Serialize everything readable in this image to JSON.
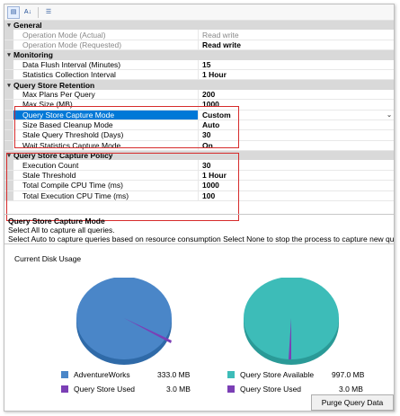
{
  "toolbar": {
    "buttons": [
      {
        "name": "categorized-sort-icon",
        "glyph": "▤"
      },
      {
        "name": "alphabetical-sort-icon",
        "glyph": "A↓"
      },
      {
        "name": "property-pages-icon",
        "glyph": "☰"
      }
    ]
  },
  "grid": {
    "general": {
      "title": "General",
      "op_mode_actual": {
        "name": "Operation Mode (Actual)",
        "value": "Read write"
      },
      "op_mode_requested": {
        "name": "Operation Mode (Requested)",
        "value": "Read write"
      }
    },
    "monitoring": {
      "title": "Monitoring",
      "flush_interval": {
        "name": "Data Flush Interval (Minutes)",
        "value": "15"
      },
      "stats_interval": {
        "name": "Statistics Collection Interval",
        "value": "1 Hour"
      }
    },
    "retention": {
      "title": "Query Store Retention",
      "max_plans": {
        "name": "Max Plans Per Query",
        "value": "200"
      },
      "max_size": {
        "name": "Max Size (MB)",
        "value": "1000"
      },
      "capture_mode": {
        "name": "Query Store Capture Mode",
        "value": "Custom"
      },
      "cleanup_mode": {
        "name": "Size Based Cleanup Mode",
        "value": "Auto"
      },
      "stale_threshold": {
        "name": "Stale Query Threshold (Days)",
        "value": "30"
      },
      "wait_stats": {
        "name": "Wait Statistics Capture Mode",
        "value": "On"
      }
    },
    "capture_policy": {
      "title": "Query Store Capture Policy",
      "execution_count": {
        "name": "Execution Count",
        "value": "30"
      },
      "stale_threshold": {
        "name": "Stale Threshold",
        "value": "1 Hour"
      },
      "compile_cpu": {
        "name": "Total Compile CPU Time (ms)",
        "value": "1000"
      },
      "execution_cpu": {
        "name": "Total Execution CPU Time (ms)",
        "value": "100"
      }
    }
  },
  "description": {
    "title": "Query Store Capture Mode",
    "line1": "Select All to capture all queries.",
    "line2": "Select Auto to capture queries based on resource consumption Select None to stop the process to capture new queries...."
  },
  "disk_usage": {
    "title": "Current Disk Usage",
    "left": {
      "legend": [
        {
          "label": "AdventureWorks",
          "value": "333.0 MB",
          "color": "#4a86c8"
        },
        {
          "label": "Query Store Used",
          "value": "3.0 MB",
          "color": "#7b3fb5"
        }
      ]
    },
    "right": {
      "legend": [
        {
          "label": "Query Store Available",
          "value": "997.0 MB",
          "color": "#3dbcb8"
        },
        {
          "label": "Query Store Used",
          "value": "3.0 MB",
          "color": "#7b3fb5"
        }
      ]
    },
    "purge_button": "Purge Query Data"
  },
  "colors": {
    "category_bg": "#d9d9d9",
    "selection": "#0078d7",
    "highlight_box": "#d62b2b"
  }
}
